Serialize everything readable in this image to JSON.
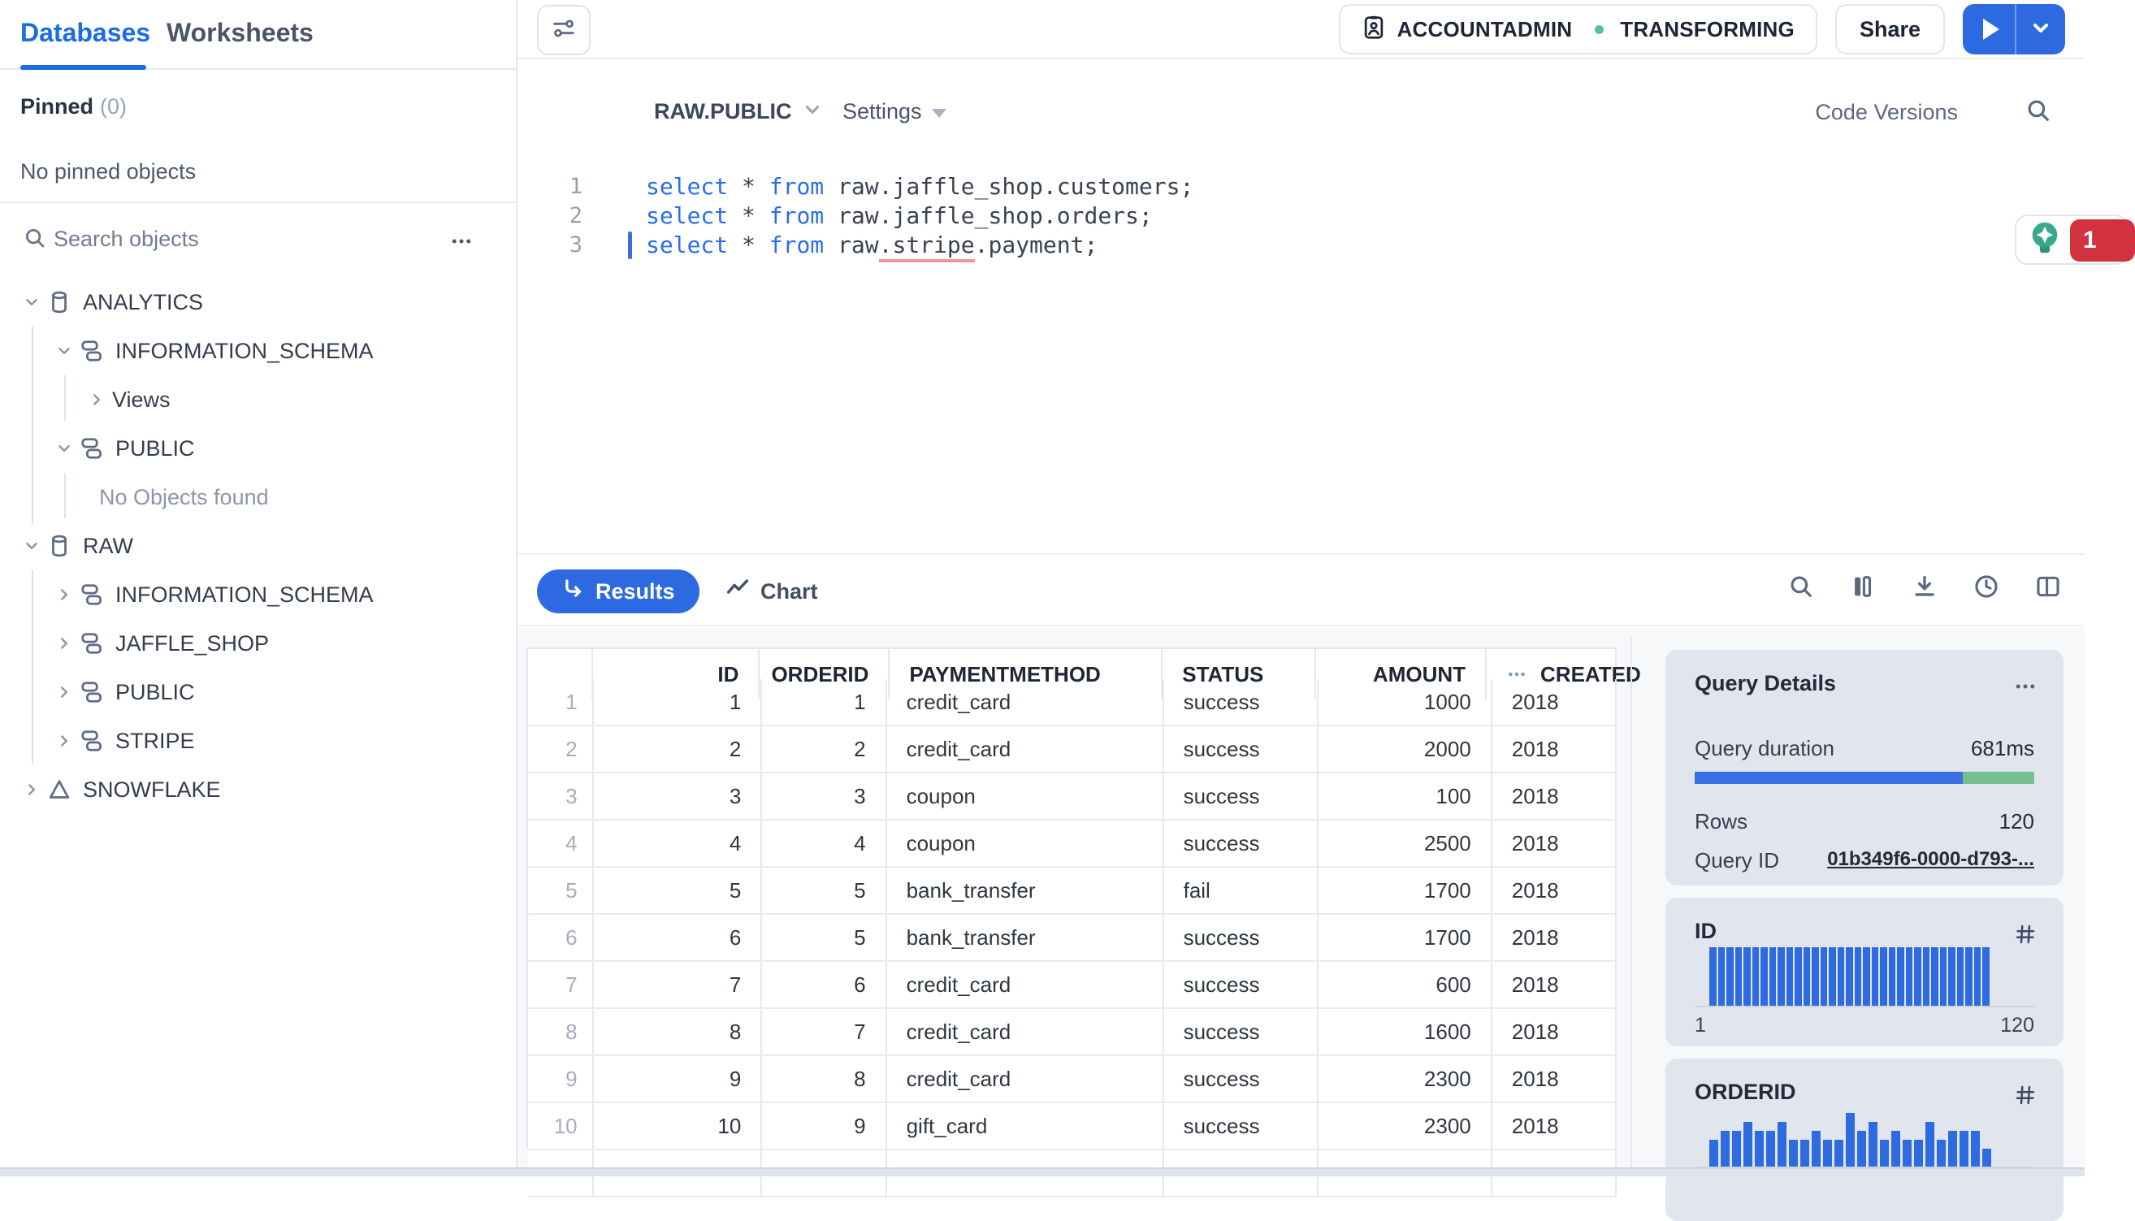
{
  "sidebar": {
    "tabs": [
      {
        "label": "Databases",
        "active": true
      },
      {
        "label": "Worksheets",
        "active": false
      }
    ],
    "pinned": {
      "label": "Pinned",
      "count": "(0)",
      "empty": "No pinned objects"
    },
    "search": {
      "placeholder": "Search objects"
    },
    "tree": [
      {
        "label": "ANALYTICS",
        "level": 0,
        "chevron": "down",
        "icon": "database"
      },
      {
        "label": "INFORMATION_SCHEMA",
        "level": 1,
        "chevron": "down",
        "icon": "schema"
      },
      {
        "label": "Views",
        "level": 2,
        "chevron": "right",
        "icon": "none"
      },
      {
        "label": "PUBLIC",
        "level": 1,
        "chevron": "down",
        "icon": "schema"
      },
      {
        "label": "No Objects found",
        "level": 2,
        "chevron": "none",
        "icon": "none",
        "muted": true
      },
      {
        "label": "RAW",
        "level": 0,
        "chevron": "down",
        "icon": "database"
      },
      {
        "label": "INFORMATION_SCHEMA",
        "level": 1,
        "chevron": "right",
        "icon": "schema"
      },
      {
        "label": "JAFFLE_SHOP",
        "level": 1,
        "chevron": "right",
        "icon": "schema"
      },
      {
        "label": "PUBLIC",
        "level": 1,
        "chevron": "right",
        "icon": "schema"
      },
      {
        "label": "STRIPE",
        "level": 1,
        "chevron": "right",
        "icon": "schema"
      },
      {
        "label": "SNOWFLAKE",
        "level": 0,
        "chevron": "right",
        "icon": "app"
      }
    ]
  },
  "topbar": {
    "context": {
      "role": "ACCOUNTADMIN",
      "warehouse": "TRANSFORMING"
    },
    "share_label": "Share"
  },
  "editor": {
    "context_selector": "RAW.PUBLIC",
    "settings_label": "Settings",
    "code_versions_label": "Code Versions",
    "lines": [
      {
        "num": "1",
        "cursor": false,
        "segments": [
          [
            "kw",
            "select"
          ],
          [
            "pl",
            " * "
          ],
          [
            "kw",
            "from"
          ],
          [
            "pl",
            " raw.jaffle_shop.customers;"
          ]
        ]
      },
      {
        "num": "2",
        "cursor": false,
        "segments": [
          [
            "kw",
            "select"
          ],
          [
            "pl",
            " * "
          ],
          [
            "kw",
            "from"
          ],
          [
            "pl",
            " raw.jaffle_shop.orders;"
          ]
        ]
      },
      {
        "num": "3",
        "cursor": true,
        "segments": [
          [
            "kw",
            "select"
          ],
          [
            "pl",
            " * "
          ],
          [
            "kw",
            "from"
          ],
          [
            "pl",
            " raw"
          ],
          [
            "err",
            ".stripe"
          ],
          [
            "pl",
            ".payment;"
          ]
        ]
      }
    ],
    "hint_badge_count": "1"
  },
  "results": {
    "tabs": [
      {
        "label": "Results",
        "active": true
      },
      {
        "label": "Chart",
        "active": false
      }
    ],
    "table": {
      "columns": [
        {
          "label": "",
          "align": "right"
        },
        {
          "label": "ID",
          "align": "right"
        },
        {
          "label": "ORDERID",
          "align": "right"
        },
        {
          "label": "PAYMENTMETHOD",
          "align": "left"
        },
        {
          "label": "STATUS",
          "align": "left"
        },
        {
          "label": "AMOUNT",
          "align": "right"
        },
        {
          "label": "CREATED",
          "align": "left",
          "overflow_menu": true
        }
      ],
      "rows": [
        {
          "n": "1",
          "cells": [
            "1",
            "1",
            "credit_card",
            "success",
            "1000",
            "2018"
          ]
        },
        {
          "n": "2",
          "cells": [
            "2",
            "2",
            "credit_card",
            "success",
            "2000",
            "2018"
          ]
        },
        {
          "n": "3",
          "cells": [
            "3",
            "3",
            "coupon",
            "success",
            "100",
            "2018"
          ]
        },
        {
          "n": "4",
          "cells": [
            "4",
            "4",
            "coupon",
            "success",
            "2500",
            "2018"
          ]
        },
        {
          "n": "5",
          "cells": [
            "5",
            "5",
            "bank_transfer",
            "fail",
            "1700",
            "2018"
          ]
        },
        {
          "n": "6",
          "cells": [
            "6",
            "5",
            "bank_transfer",
            "success",
            "1700",
            "2018"
          ]
        },
        {
          "n": "7",
          "cells": [
            "7",
            "6",
            "credit_card",
            "success",
            "600",
            "2018"
          ]
        },
        {
          "n": "8",
          "cells": [
            "8",
            "7",
            "credit_card",
            "success",
            "1600",
            "2018"
          ]
        },
        {
          "n": "9",
          "cells": [
            "9",
            "8",
            "credit_card",
            "success",
            "2300",
            "2018"
          ]
        },
        {
          "n": "10",
          "cells": [
            "10",
            "9",
            "gift_card",
            "success",
            "2300",
            "2018"
          ]
        },
        {
          "n": "",
          "cells": [
            "",
            "",
            "",
            "",
            "",
            ""
          ]
        }
      ]
    }
  },
  "details": {
    "query": {
      "title": "Query Details",
      "duration_label": "Query duration",
      "duration_value": "681ms",
      "duration_blue_pct": 79,
      "rows_label": "Rows",
      "rows_value": "120",
      "query_id_label": "Query ID",
      "query_id_value": "01b349f6-0000-d793-..."
    },
    "id_card": {
      "title": "ID",
      "min": "1",
      "max": "120",
      "bar_count": 33,
      "uniform_height": 72
    },
    "orderid_card": {
      "title": "ORDERID",
      "bar_heights": [
        3,
        4,
        4,
        5,
        4,
        4,
        5,
        3,
        3,
        4,
        3,
        3,
        6,
        4,
        5,
        3,
        4,
        3,
        3,
        5,
        3,
        4,
        4,
        4,
        2
      ],
      "unit": 11
    }
  },
  "colors": {
    "accent_blue": "#2d6ae2",
    "keyword_blue": "#2a6df0",
    "bar_blue": "#3a70e3",
    "bar_green": "#74c18e",
    "histogram_blue": "#2f6be0",
    "badge_red": "#d2323e",
    "bulb_teal": "#38a98c",
    "status_green": "#57c390",
    "error_underline": "#f0949b"
  }
}
